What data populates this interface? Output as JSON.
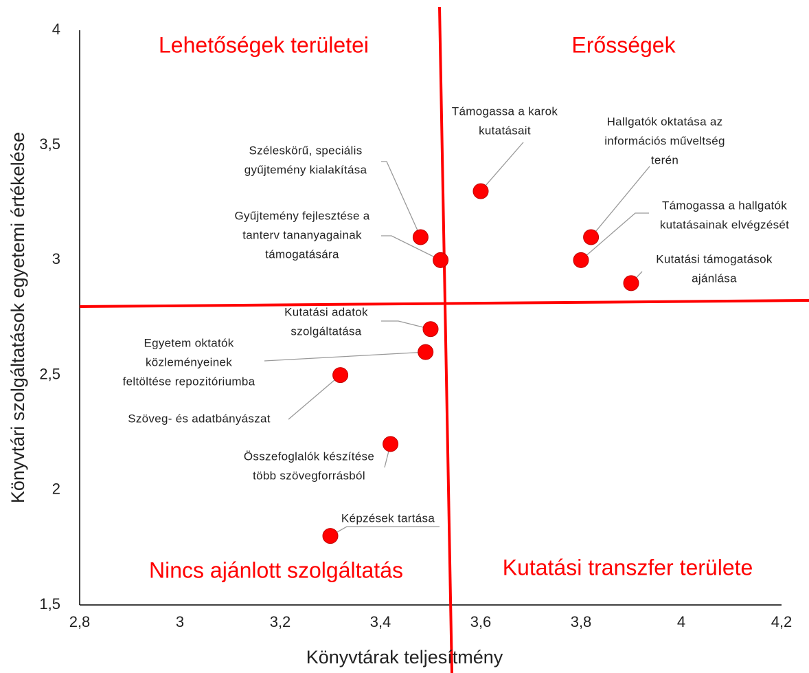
{
  "chart_data": {
    "type": "scatter",
    "x_label": "Könyvtárak teljesítmény",
    "y_label": "Könyvtári szolgáltatások egyetemi értékelése",
    "annotations": [
      "Lehetőségek területei",
      "Erősségek",
      "Nincs ajánlott szolgáltatás",
      "Kutatási transzfer területe"
    ],
    "color": "#ff0000",
    "x": [
      3.48,
      3.52,
      3.6,
      3.82,
      3.8,
      3.9,
      3.5,
      3.49,
      3.32,
      3.42,
      3.3
    ],
    "values": [
      3.1,
      3.0,
      3.3,
      3.1,
      3.0,
      2.9,
      2.7,
      2.6,
      2.5,
      2.2,
      1.8
    ],
    "point_labels": [
      [
        "Széleskörű, speciális",
        "gyűjtemény kialakítása"
      ],
      [
        "Gyűjtemény fejlesztése a",
        "tanterv tananyagainak",
        "támogatására"
      ],
      [
        "Támogassa a karok",
        "kutatásait"
      ],
      [
        "Hallgatók oktatása az",
        "információs műveltség",
        "terén"
      ],
      [
        "Támogassa a hallgatók",
        "kutatásainak elvégzését"
      ],
      [
        "Kutatási támogatások",
        "ajánlása"
      ],
      [
        "Kutatási adatok",
        "szolgáltatása"
      ],
      [
        "Egyetem oktatók",
        "közleményeinek",
        "feltöltése repozitóriumba"
      ],
      [
        "Szöveg- és adatbányászat"
      ],
      [
        "Összefoglalók készítése",
        "több szövegforrásból"
      ],
      [
        "Képzések tartása"
      ]
    ],
    "xlim": [
      2.8,
      4.2
    ],
    "xticks": [
      {
        "value": 2.8,
        "label": "2,8"
      },
      3,
      {
        "value": 3.2,
        "label": "3,2"
      },
      {
        "value": 3.4,
        "label": "3,4"
      },
      {
        "value": 3.6,
        "label": "3,6"
      },
      {
        "value": 3.8,
        "label": "3,8"
      },
      4,
      {
        "value": 4.2,
        "label": "4,2"
      }
    ],
    "ylim": [
      1.5,
      4
    ],
    "yticks": [
      {
        "value": 1.5,
        "label": "1,5"
      },
      2,
      {
        "value": 2.5,
        "label": "2,5"
      },
      3,
      {
        "value": 3.5,
        "label": "3,5"
      },
      4
    ],
    "grid": false
  }
}
